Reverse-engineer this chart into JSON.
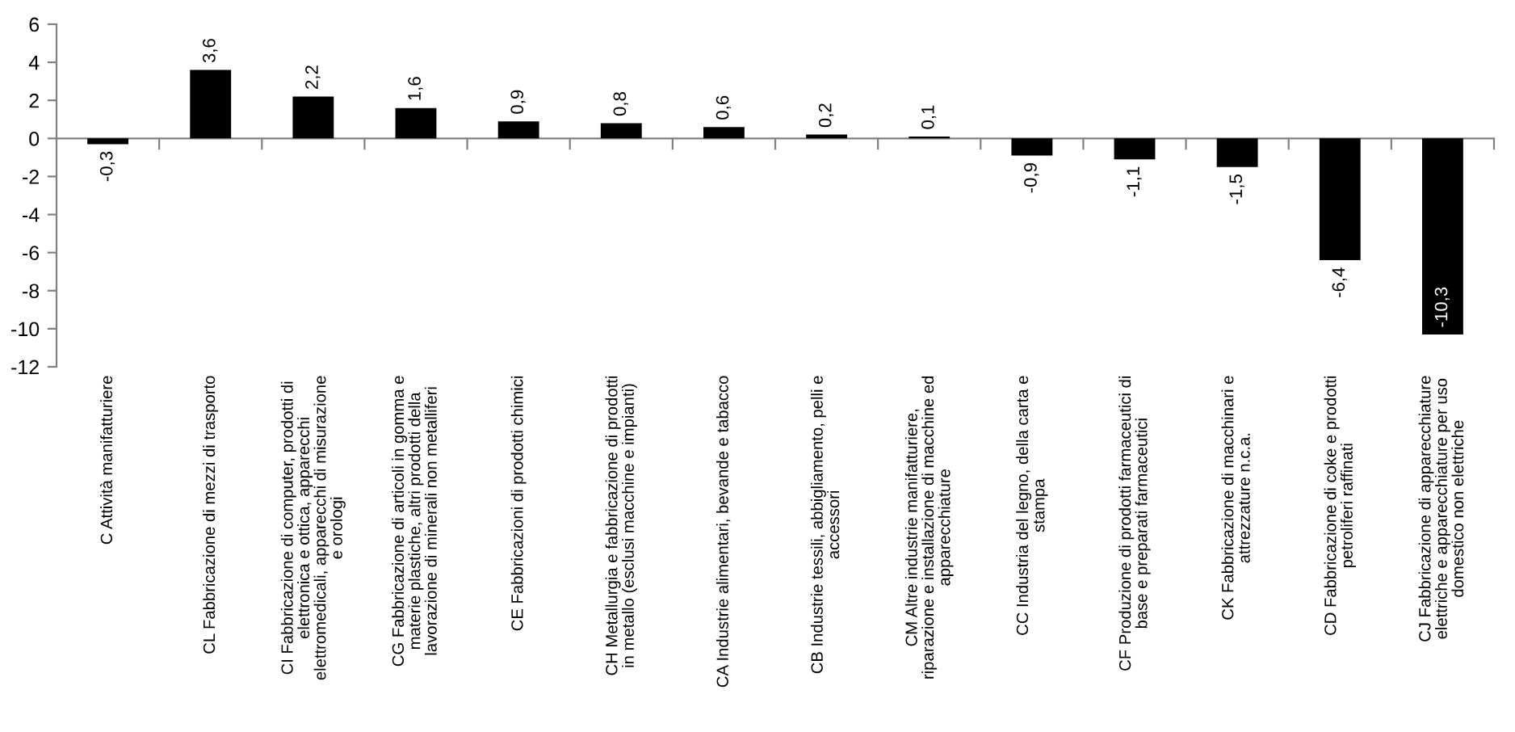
{
  "chart_data": {
    "type": "bar",
    "categories": [
      "C Attività manifatturiere",
      "CL Fabbricazione di mezzi di trasporto",
      "CI Fabbricazione di computer, prodotti di\nelettronica e ottica, apparecchi\nelettromedicali, apparecchi di misurazione\ne orologi",
      "CG Fabbricazione di articoli in gomma e\nmaterie plastiche, altri prodotti della\nlavorazione di minerali non metalliferi",
      "CE Fabbricazioni di prodotti chimici",
      "CH Metallurgia e fabbricazione di prodotti\nin metallo (esclusi macchine e impianti)",
      "CA Industrie alimentari, bevande e tabacco",
      "CB Industrie tessili, abbigliamento, pelli e\naccessori",
      "CM Altre industrie manifatturiere,\nriparazione e installazione di macchine ed\napparecchiature",
      "CC Industria del legno, della carta e\nstampa",
      "CF Produzione di prodotti farmaceutici di\nbase e preparati farmaceutici",
      "CK Fabbricazione di macchinari e\nattrezzature n.c.a.",
      "CD Fabbricazione di coke e prodotti\npetroliferi raffinati",
      "CJ Fabbricazione di apparecchiature\nelettriche e apparecchiature per uso\ndomestico non elettriche"
    ],
    "values": [
      -0.3,
      3.6,
      2.2,
      1.6,
      0.9,
      0.8,
      0.6,
      0.2,
      0.1,
      -0.9,
      -1.1,
      -1.5,
      -6.4,
      -10.3
    ],
    "value_labels": [
      "-0,3",
      "3,6",
      "2,2",
      "1,6",
      "0,9",
      "0,8",
      "0,6",
      "0,2",
      "0,1",
      "-0,9",
      "-1,1",
      "-1,5",
      "-6,4",
      "-10,3"
    ],
    "color": "#000000",
    "ylim": [
      -12,
      6
    ],
    "yticks": [
      -12,
      -10,
      -8,
      -6,
      -4,
      -2,
      0,
      2,
      4,
      6
    ]
  }
}
